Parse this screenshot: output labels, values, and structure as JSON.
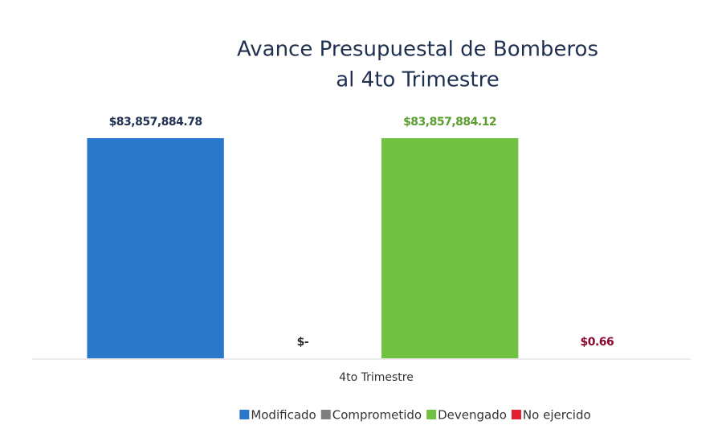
{
  "chart_data": {
    "type": "bar",
    "title": [
      "Avance Presupuestal de Bomberos",
      "al 4to Trimestre"
    ],
    "categories": [
      "4to Trimestre"
    ],
    "series": [
      {
        "name": "Modificado",
        "color": "#2a78c9",
        "label_color": "#1f3050",
        "values": [
          83857884.78
        ],
        "value_labels": [
          "$83,857,884.78"
        ]
      },
      {
        "name": "Comprometido",
        "color": "#7f7f7f",
        "label_color": "#2b2b2b",
        "values": [
          0
        ],
        "value_labels": [
          "$-"
        ]
      },
      {
        "name": "Devengado",
        "color": "#71c143",
        "label_color": "#5b9e2f",
        "values": [
          83857884.12
        ],
        "value_labels": [
          "$83,857,884.12"
        ]
      },
      {
        "name": "No ejercido",
        "color": "#e0202e",
        "label_color": "#8c0a30",
        "values": [
          0.66
        ],
        "value_labels": [
          "$0.66"
        ]
      }
    ],
    "legend": "bottom"
  }
}
